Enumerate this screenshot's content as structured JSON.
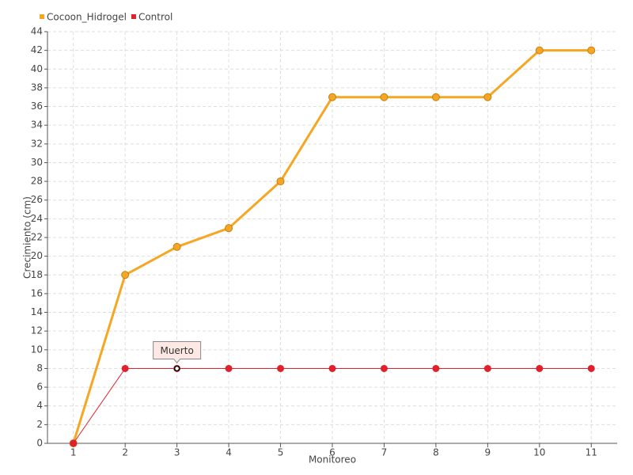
{
  "chart_data": {
    "type": "line",
    "xlabel": "Monitoreo",
    "ylabel": "Crecimiento (cm)",
    "categories": [
      "1",
      "2",
      "3",
      "4",
      "5",
      "6",
      "7",
      "8",
      "9",
      "10",
      "11"
    ],
    "series": [
      {
        "name": "Cocoon_Hidrogel",
        "color": "#f5a623",
        "values": [
          0,
          18,
          21,
          23,
          28,
          37,
          37,
          37,
          37,
          42,
          42
        ]
      },
      {
        "name": "Control",
        "color": "#e0202a",
        "values": [
          0,
          8,
          8,
          8,
          8,
          8,
          8,
          8,
          8,
          8,
          8
        ]
      }
    ],
    "annotation": "Muerto",
    "ylim": [
      0,
      44
    ],
    "yticks": [
      0,
      2,
      4,
      6,
      8,
      10,
      12,
      14,
      16,
      18,
      20,
      22,
      24,
      26,
      28,
      30,
      32,
      34,
      36,
      38,
      40,
      42,
      44
    ],
    "grid": true,
    "legend": "top-left"
  }
}
